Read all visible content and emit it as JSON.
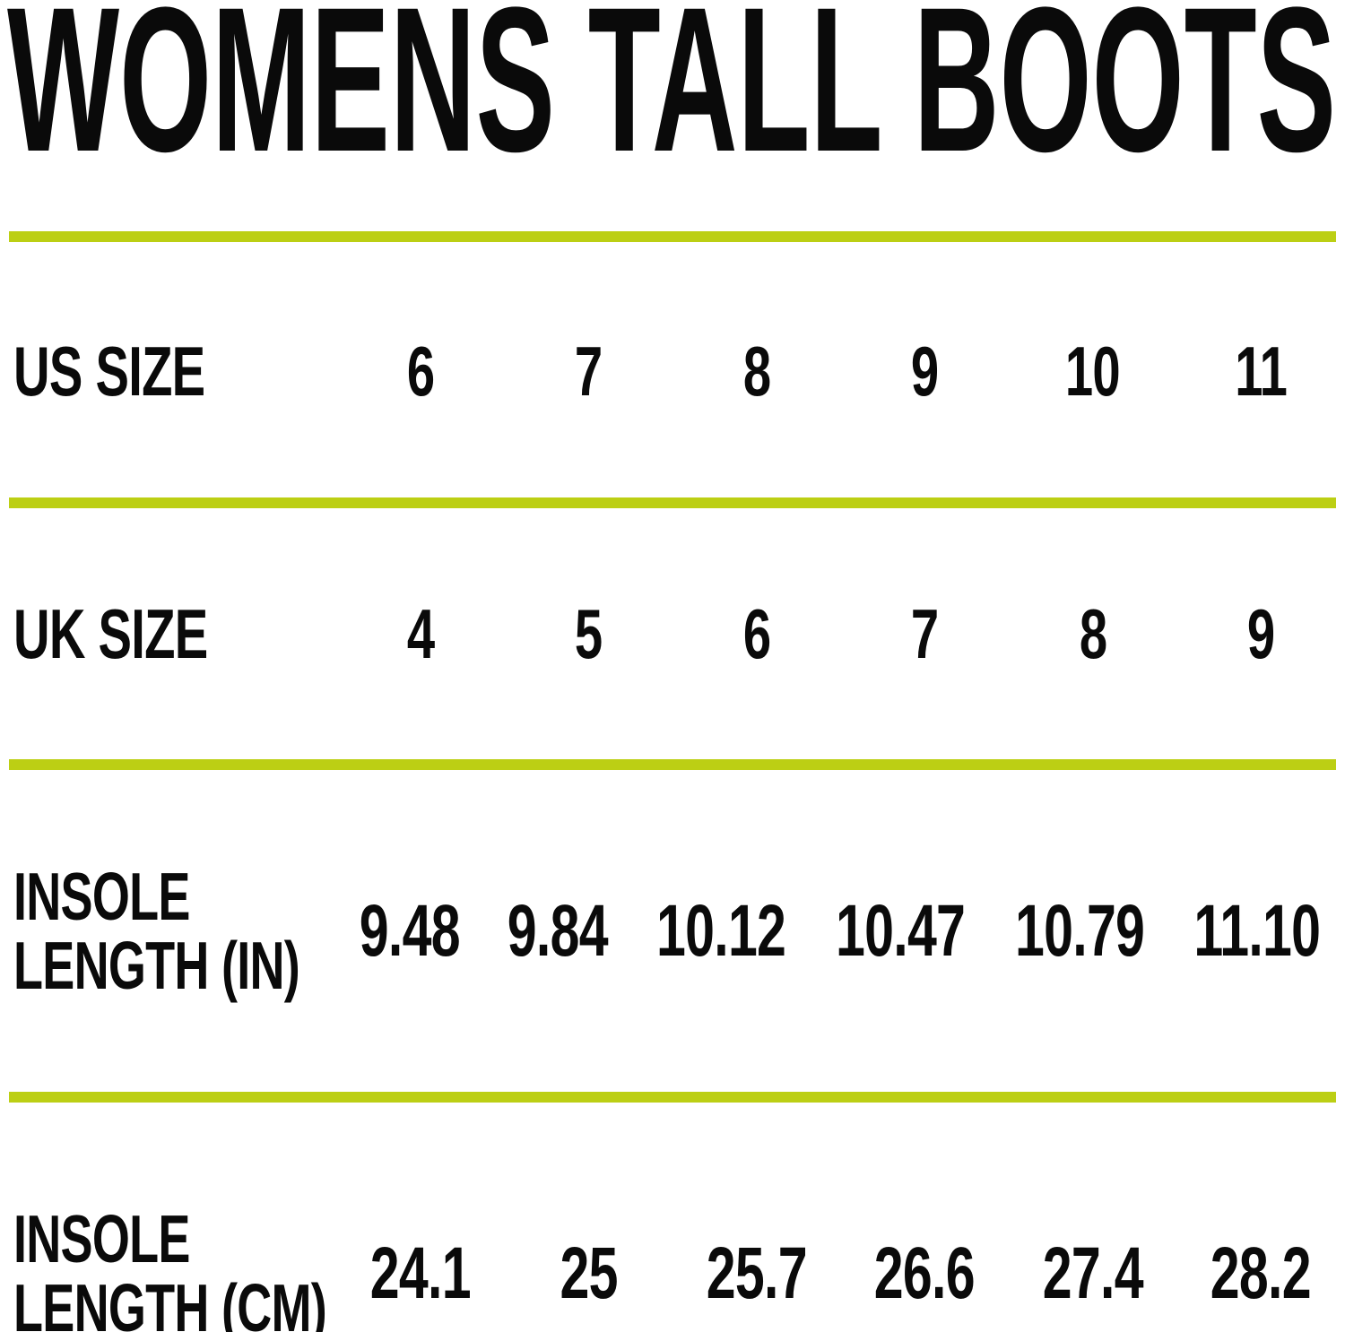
{
  "title": "WOMENS TALL BOOTS",
  "colors": {
    "divider": "#BCCF14",
    "text": "#0A0A0A",
    "background": "#FFFFFF"
  },
  "chart_data": {
    "type": "table",
    "title": "WOMENS TALL BOOTS",
    "layout": {
      "grid": "4 rows separated by horizontal accent rules",
      "label_column": "left",
      "value_columns": 6
    },
    "rows": [
      {
        "label": "US SIZE",
        "label_lines": [
          "US SIZE"
        ],
        "values": [
          "6",
          "7",
          "8",
          "9",
          "10",
          "11"
        ]
      },
      {
        "label": "UK SIZE",
        "label_lines": [
          "UK SIZE"
        ],
        "values": [
          "4",
          "5",
          "6",
          "7",
          "8",
          "9"
        ]
      },
      {
        "label": "INSOLE LENGTH (IN)",
        "label_lines": [
          "INSOLE",
          "LENGTH (IN)"
        ],
        "values": [
          "9.48",
          "9.84",
          "10.12",
          "10.47",
          "10.79",
          "11.10"
        ]
      },
      {
        "label": "INSOLE LENGTH (CM)",
        "label_lines": [
          "INSOLE",
          "LENGTH (CM)"
        ],
        "values": [
          "24.1",
          "25",
          "25.7",
          "26.6",
          "27.4",
          "28.2"
        ]
      }
    ]
  }
}
